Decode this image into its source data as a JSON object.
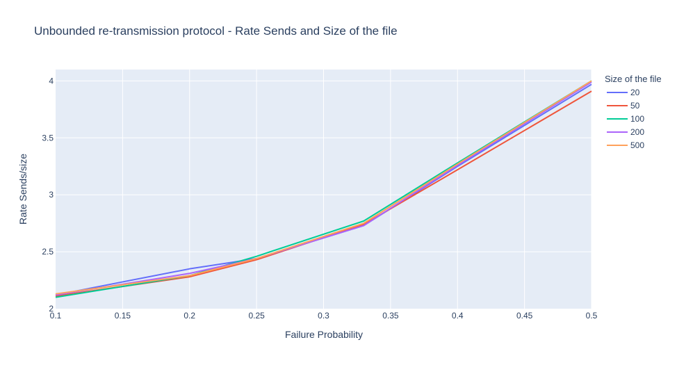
{
  "chart_data": {
    "type": "line",
    "title": "Unbounded re-transmission protocol - Rate Sends and Size of the file",
    "xlabel": "Failure Probability",
    "ylabel": "Rate Sends/size",
    "xlim": [
      0.1,
      0.5
    ],
    "ylim": [
      2,
      4.1
    ],
    "xticks": [
      0.1,
      0.15,
      0.2,
      0.25,
      0.3,
      0.35,
      0.4,
      0.45,
      0.5
    ],
    "xtick_labels": [
      "0.1",
      "0.15",
      "0.2",
      "0.25",
      "0.3",
      "0.35",
      "0.4",
      "0.45",
      "0.5"
    ],
    "yticks": [
      2,
      2.5,
      3,
      3.5,
      4
    ],
    "ytick_labels": [
      "2",
      "2.5",
      "3",
      "3.5",
      "4"
    ],
    "grid": true,
    "legend_title": "Size of the file",
    "legend_position": "right",
    "x": [
      0.1,
      0.2,
      0.25,
      0.33,
      0.4,
      0.5
    ],
    "series": [
      {
        "name": "20",
        "color": "#636efa",
        "values": [
          2.12,
          2.35,
          2.44,
          2.73,
          3.25,
          3.97
        ]
      },
      {
        "name": "50",
        "color": "#ef553b",
        "values": [
          2.11,
          2.28,
          2.43,
          2.74,
          3.22,
          3.91
        ]
      },
      {
        "name": "100",
        "color": "#00cc96",
        "values": [
          2.1,
          2.29,
          2.46,
          2.77,
          3.28,
          4.0
        ]
      },
      {
        "name": "200",
        "color": "#ab63fa",
        "values": [
          2.12,
          2.31,
          2.44,
          2.73,
          3.26,
          3.99
        ]
      },
      {
        "name": "500",
        "color": "#ffa15a",
        "values": [
          2.13,
          2.29,
          2.44,
          2.75,
          3.27,
          4.0
        ]
      }
    ]
  }
}
